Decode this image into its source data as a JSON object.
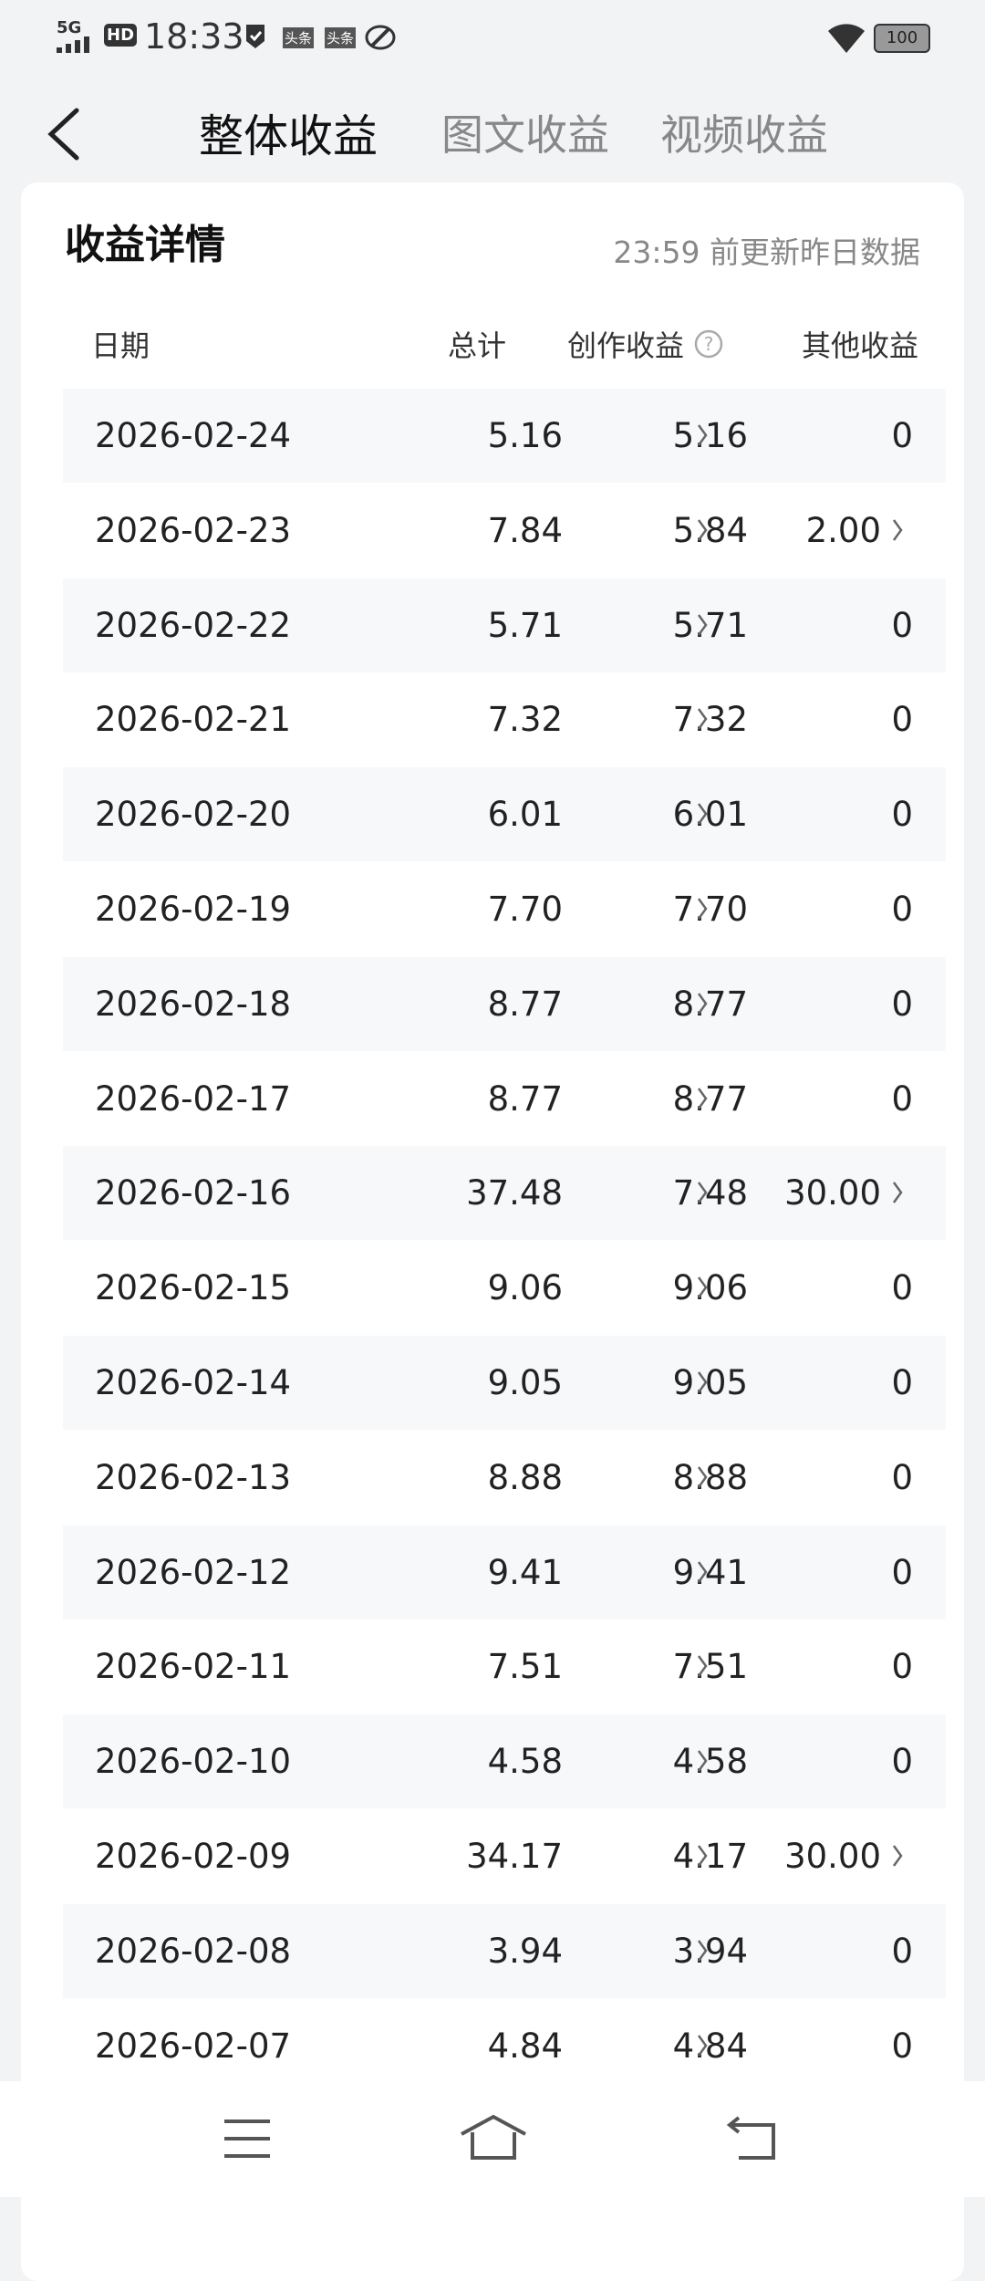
{
  "status_bar": {
    "network": "5G",
    "hd": "HD",
    "time": "18:33",
    "badge1": "头条",
    "badge2": "头条",
    "battery": "100"
  },
  "tabs": [
    "整体收益",
    "图文收益",
    "视频收益"
  ],
  "card": {
    "title": "收益详情",
    "note": "23:59 前更新昨日数据"
  },
  "table": {
    "headers": [
      "日期",
      "总计",
      "创作收益",
      "其他收益"
    ],
    "rows": [
      [
        "2026-02-24",
        "5.16",
        "5.16",
        "0"
      ],
      [
        "2026-02-23",
        "7.84",
        "5.84",
        "2.00"
      ],
      [
        "2026-02-22",
        "5.71",
        "5.71",
        "0"
      ],
      [
        "2026-02-21",
        "7.32",
        "7.32",
        "0"
      ],
      [
        "2026-02-20",
        "6.01",
        "6.01",
        "0"
      ],
      [
        "2026-02-19",
        "7.70",
        "7.70",
        "0"
      ],
      [
        "2026-02-18",
        "8.77",
        "8.77",
        "0"
      ],
      [
        "2026-02-17",
        "8.77",
        "8.77",
        "0"
      ],
      [
        "2026-02-16",
        "37.48",
        "7.48",
        "30.00"
      ],
      [
        "2026-02-15",
        "9.06",
        "9.06",
        "0"
      ],
      [
        "2026-02-14",
        "9.05",
        "9.05",
        "0"
      ],
      [
        "2026-02-13",
        "8.88",
        "8.88",
        "0"
      ],
      [
        "2026-02-12",
        "9.41",
        "9.41",
        "0"
      ],
      [
        "2026-02-11",
        "7.51",
        "7.51",
        "0"
      ],
      [
        "2026-02-10",
        "4.58",
        "4.58",
        "0"
      ],
      [
        "2026-02-09",
        "34.17",
        "4.17",
        "30.00"
      ],
      [
        "2026-02-08",
        "3.94",
        "3.94",
        "0"
      ],
      [
        "2026-02-07",
        "4.84",
        "4.84",
        "0"
      ]
    ]
  }
}
